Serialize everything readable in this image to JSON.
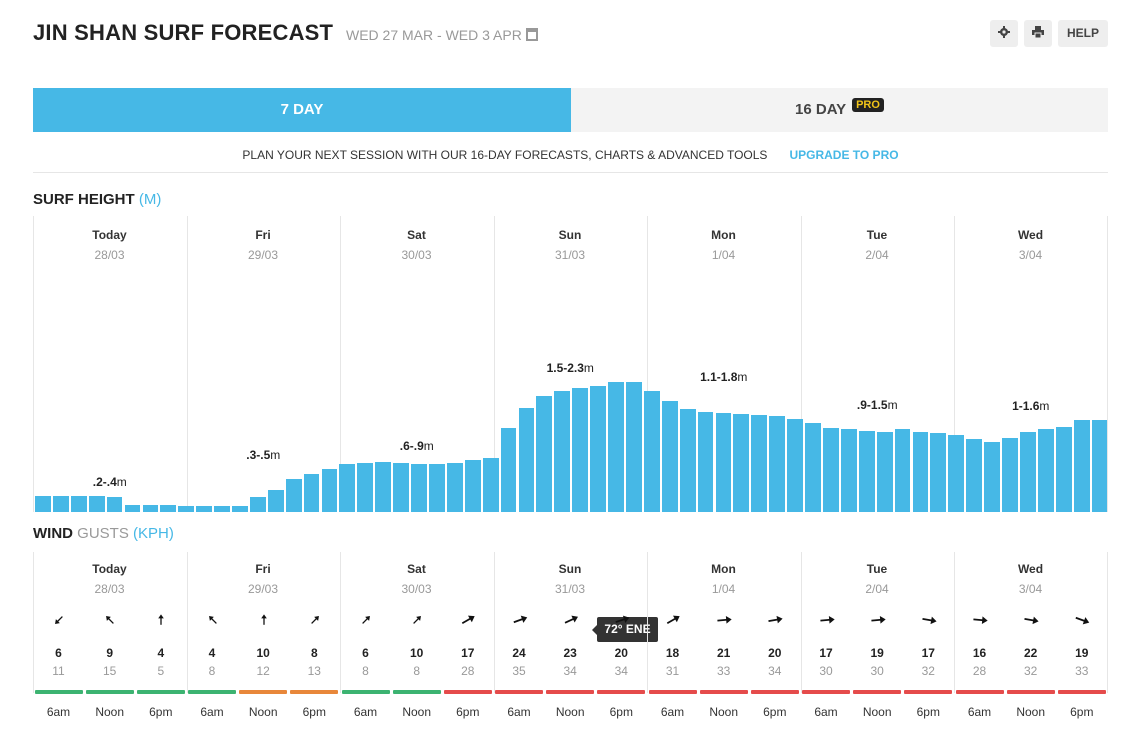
{
  "header": {
    "title": "JIN SHAN SURF FORECAST",
    "date_range": "WED 27 MAR - WED 3 APR",
    "help_label": "HELP",
    "settings_icon": "gear-icon",
    "print_icon": "printer-icon"
  },
  "tabs": [
    {
      "label": "7 DAY",
      "active": true
    },
    {
      "label": "16 DAY",
      "badge": "PRO",
      "active": false
    }
  ],
  "upsell": {
    "text": "PLAN YOUR NEXT SESSION WITH OUR 16-DAY FORECASTS, CHARTS & ADVANCED TOOLS",
    "link": "UPGRADE TO PRO"
  },
  "surf": {
    "title": "SURF HEIGHT",
    "unit": "(M)",
    "days": [
      {
        "name": "Today",
        "date": "28/03",
        "range": ".2-.4",
        "unit": "m"
      },
      {
        "name": "Fri",
        "date": "29/03",
        "range": ".3-.5",
        "unit": "m"
      },
      {
        "name": "Sat",
        "date": "30/03",
        "range": ".6-.9",
        "unit": "m"
      },
      {
        "name": "Sun",
        "date": "31/03",
        "range": "1.5-2.3",
        "unit": "m"
      },
      {
        "name": "Mon",
        "date": "1/04",
        "range": "1.1-1.8",
        "unit": "m"
      },
      {
        "name": "Tue",
        "date": "2/04",
        "range": ".9-1.5",
        "unit": "m"
      },
      {
        "name": "Wed",
        "date": "3/04",
        "range": "1-1.6",
        "unit": "m"
      }
    ]
  },
  "chart_data": {
    "type": "bar",
    "title": "SURF HEIGHT (M)",
    "values": [
      0.4,
      0.4,
      0.38,
      0.38,
      0.36,
      0.16,
      0.16,
      0.16,
      0.14,
      0.14,
      0.14,
      0.14,
      0.36,
      0.54,
      0.8,
      0.94,
      1.04,
      1.16,
      1.2,
      1.22,
      1.2,
      1.18,
      1.16,
      1.2,
      1.28,
      1.32,
      2.06,
      2.54,
      2.84,
      2.96,
      3.02,
      3.08,
      3.16,
      3.16,
      2.96,
      2.72,
      2.52,
      2.44,
      2.42,
      2.38,
      2.36,
      2.34,
      2.26,
      2.18,
      2.06,
      2.02,
      1.98,
      1.96,
      2.02,
      1.96,
      1.94,
      1.88,
      1.78,
      1.72,
      1.8,
      1.96,
      2.02,
      2.08,
      2.24,
      2.24
    ]
  },
  "wind": {
    "title": "WIND",
    "sub": "GUSTS",
    "unit": "(KPH)",
    "times": [
      "6am",
      "Noon",
      "6pm"
    ],
    "tooltip": "72° ENE",
    "cells": [
      {
        "speed": "6",
        "gust": "11",
        "dir": 225,
        "color": "#3cb371"
      },
      {
        "speed": "9",
        "gust": "15",
        "dir": 315,
        "color": "#3cb371"
      },
      {
        "speed": "4",
        "gust": "5",
        "dir": 0,
        "color": "#3cb371"
      },
      {
        "speed": "4",
        "gust": "8",
        "dir": 315,
        "color": "#3cb371"
      },
      {
        "speed": "10",
        "gust": "12",
        "dir": 0,
        "color": "#e8873a"
      },
      {
        "speed": "8",
        "gust": "13",
        "dir": 45,
        "color": "#e8873a"
      },
      {
        "speed": "6",
        "gust": "8",
        "dir": 45,
        "color": "#3cb371"
      },
      {
        "speed": "10",
        "gust": "8",
        "dir": 45,
        "color": "#3cb371"
      },
      {
        "speed": "17",
        "gust": "28",
        "dir": 60,
        "color": "#e54b4b"
      },
      {
        "speed": "24",
        "gust": "35",
        "dir": 70,
        "color": "#e54b4b"
      },
      {
        "speed": "23",
        "gust": "34",
        "dir": 65,
        "color": "#e54b4b"
      },
      {
        "speed": "20",
        "gust": "34",
        "dir": 72,
        "color": "#e54b4b"
      },
      {
        "speed": "18",
        "gust": "31",
        "dir": 60,
        "color": "#e54b4b"
      },
      {
        "speed": "21",
        "gust": "33",
        "dir": 85,
        "color": "#e54b4b"
      },
      {
        "speed": "20",
        "gust": "34",
        "dir": 80,
        "color": "#e54b4b"
      },
      {
        "speed": "17",
        "gust": "30",
        "dir": 85,
        "color": "#e54b4b"
      },
      {
        "speed": "19",
        "gust": "30",
        "dir": 85,
        "color": "#e54b4b"
      },
      {
        "speed": "17",
        "gust": "32",
        "dir": 100,
        "color": "#e54b4b"
      },
      {
        "speed": "16",
        "gust": "28",
        "dir": 95,
        "color": "#e54b4b"
      },
      {
        "speed": "22",
        "gust": "32",
        "dir": 100,
        "color": "#e54b4b"
      },
      {
        "speed": "19",
        "gust": "33",
        "dir": 110,
        "color": "#e54b4b"
      }
    ]
  }
}
